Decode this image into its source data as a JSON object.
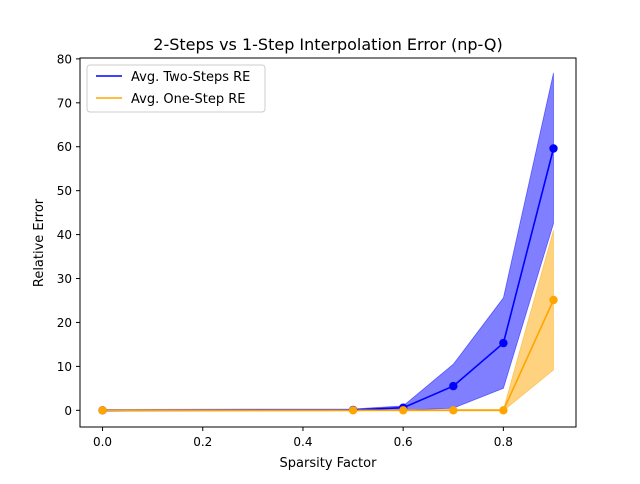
{
  "chart_data": {
    "type": "line",
    "title": "2-Steps vs 1-Step Interpolation Error (np-Q)",
    "xlabel": "Sparsity Factor",
    "ylabel": "Relative Error",
    "xlim": [
      -0.045,
      0.945
    ],
    "ylim": [
      -3.8,
      80.2
    ],
    "x": [
      0.0,
      0.5,
      0.6,
      0.7,
      0.8,
      0.9
    ],
    "xticks": [
      0.0,
      0.2,
      0.4,
      0.6,
      0.8
    ],
    "xtick_labels": [
      "0.0",
      "0.2",
      "0.4",
      "0.6",
      "0.8"
    ],
    "yticks": [
      0,
      10,
      20,
      30,
      40,
      50,
      60,
      70,
      80
    ],
    "ytick_labels": [
      "0",
      "10",
      "20",
      "30",
      "40",
      "50",
      "60",
      "70",
      "80"
    ],
    "legend_position": "top-left",
    "series": [
      {
        "name": "Avg. Two-Steps RE",
        "color": "#0000ff",
        "values": [
          0.0,
          0.1,
          0.6,
          5.5,
          15.3,
          59.6
        ],
        "lower": [
          -0.2,
          -0.1,
          0.0,
          0.5,
          5.0,
          42.5
        ],
        "upper": [
          0.2,
          0.3,
          1.0,
          10.5,
          25.6,
          76.8
        ]
      },
      {
        "name": "Avg. One-Step RE",
        "color": "#ffa500",
        "values": [
          0.0,
          0.0,
          0.0,
          0.0,
          0.0,
          25.1
        ],
        "lower": [
          -0.15,
          -0.1,
          -0.1,
          -0.1,
          -0.1,
          9.2
        ],
        "upper": [
          0.15,
          0.1,
          0.1,
          0.2,
          0.2,
          41.0
        ]
      }
    ]
  }
}
